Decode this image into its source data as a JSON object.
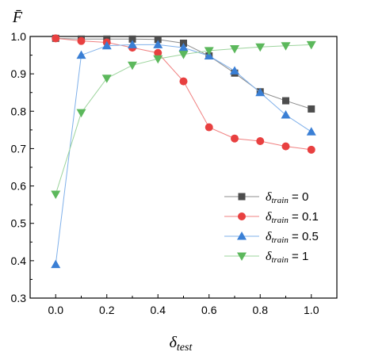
{
  "chart_data": {
    "type": "line",
    "ylabel": "F̄",
    "xlabel_base": "δ",
    "xlabel_sub": "test",
    "xlim": [
      -0.1,
      1.1
    ],
    "ylim": [
      0.3,
      1.0
    ],
    "xticks": [
      0.0,
      0.2,
      0.4,
      0.6,
      0.8,
      1.0
    ],
    "xtick_labels": [
      "0.0",
      "0.2",
      "0.4",
      "0.6",
      "0.8",
      "1.0"
    ],
    "yticks": [
      0.3,
      0.4,
      0.5,
      0.6,
      0.7,
      0.8,
      0.9,
      1.0
    ],
    "ytick_labels": [
      "0.3",
      "0.4",
      "0.5",
      "0.6",
      "0.7",
      "0.8",
      "0.9",
      "1.0"
    ],
    "grid": false,
    "legend_position": "bottom-right",
    "x": [
      0.0,
      0.1,
      0.2,
      0.3,
      0.4,
      0.5,
      0.6,
      0.7,
      0.8,
      0.9,
      1.0
    ],
    "series": [
      {
        "legend_base": "δ",
        "legend_sub": "train",
        "legend_value": " = 0",
        "marker": "square",
        "color": "#4d4d4d",
        "line_color": "#8c8c8c",
        "values": [
          0.995,
          0.993,
          0.993,
          0.993,
          0.992,
          0.982,
          0.948,
          0.902,
          0.852,
          0.828,
          0.806
        ]
      },
      {
        "legend_base": "δ",
        "legend_sub": "train",
        "legend_value": " = 0.1",
        "marker": "circle",
        "color": "#e84040",
        "line_color": "#f08080",
        "values": [
          0.995,
          0.988,
          0.984,
          0.97,
          0.956,
          0.88,
          0.757,
          0.727,
          0.72,
          0.706,
          0.697
        ]
      },
      {
        "legend_base": "δ",
        "legend_sub": "train",
        "legend_value": " = 0.5",
        "marker": "triangle-up",
        "color": "#3a7fd5",
        "line_color": "#7fb0ea",
        "values": [
          0.39,
          0.95,
          0.975,
          0.978,
          0.978,
          0.97,
          0.948,
          0.908,
          0.85,
          0.79,
          0.745
        ]
      },
      {
        "legend_base": "δ",
        "legend_sub": "train",
        "legend_value": " = 1",
        "marker": "triangle-down",
        "color": "#5cb85c",
        "line_color": "#9dd49d",
        "values": [
          0.578,
          0.796,
          0.888,
          0.923,
          0.94,
          0.952,
          0.962,
          0.967,
          0.972,
          0.975,
          0.978
        ]
      }
    ]
  }
}
